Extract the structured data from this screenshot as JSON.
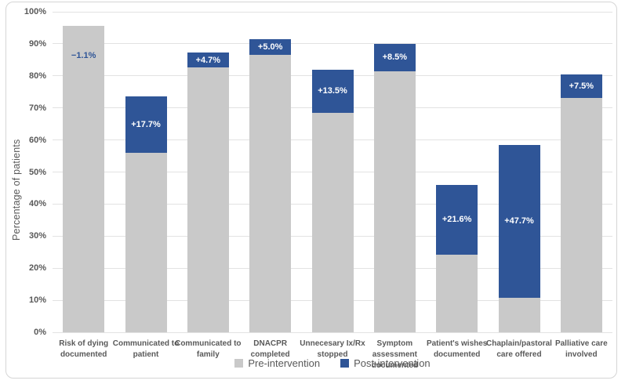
{
  "chart_data": {
    "type": "bar",
    "subtype": "stacked-delta-columns",
    "title": "",
    "xlabel": "",
    "ylabel": "Percentage of patients",
    "ylim": [
      0,
      100
    ],
    "ytick_step": 10,
    "ytick_labels": [
      "0%",
      "10%",
      "20%",
      "30%",
      "40%",
      "50%",
      "60%",
      "70%",
      "80%",
      "90%",
      "100%"
    ],
    "grid": true,
    "legend_position": "bottom-center",
    "categories": [
      "Risk of dying\ndocumented",
      "Communicated to\npatient",
      "Communicated to\nfamily",
      "DNACPR completed",
      "Unnecesary Ix/Rx\nstopped",
      "Symptom assessment\ndocumented",
      "Patient's wishes\ndocumented",
      "Chaplain/pastoral\ncare offered",
      "Palliative care\ninvolved"
    ],
    "series": [
      {
        "name": "Pre-intervention",
        "values": [
          95.5,
          56.0,
          82.6,
          86.5,
          68.5,
          81.5,
          24.3,
          10.8,
          73.0
        ]
      },
      {
        "name": "Post-intervention",
        "values": [
          94.4,
          73.7,
          87.3,
          91.5,
          82.0,
          90.0,
          45.9,
          58.5,
          80.5
        ]
      }
    ],
    "delta_labels": [
      "−1.1%",
      "+17.7%",
      "+4.7%",
      "+5.0%",
      "+13.5%",
      "+8.5%",
      "+21.6%",
      "+47.7%",
      "+7.5%"
    ],
    "colors": {
      "pre": "#c9c9c9",
      "post": "#2f5597",
      "delta_label_positive": "#ffffff",
      "delta_label_negative": "#2f5597",
      "gridline": "#e2e2e2",
      "axis_text": "#595959"
    }
  },
  "legend": {
    "items": [
      {
        "label": "Pre-intervention",
        "swatch": "pre-swatch"
      },
      {
        "label": "Post-intervention",
        "swatch": "post-swatch"
      }
    ]
  }
}
